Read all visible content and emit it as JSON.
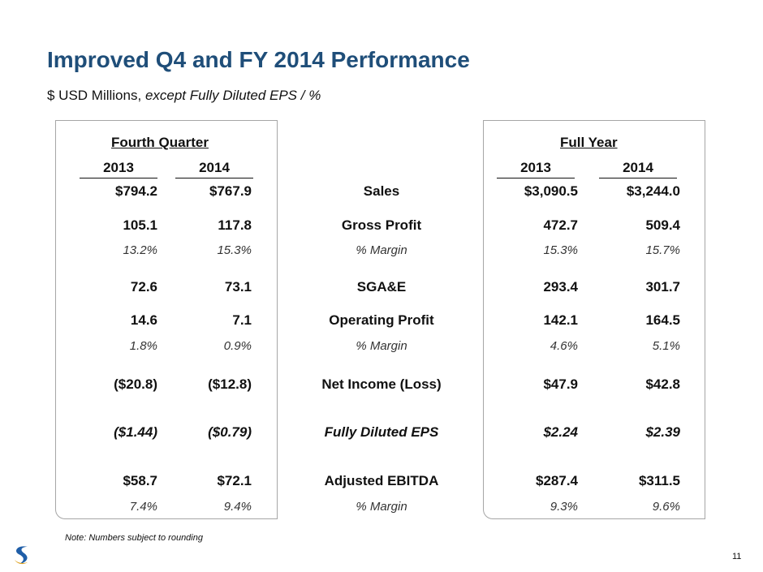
{
  "title": "Improved Q4 and FY 2014 Performance",
  "subtitle": {
    "prefix": "$ USD Millions,",
    "italic": "except Fully Diluted EPS / %"
  },
  "fourth_quarter": {
    "heading": "Fourth Quarter",
    "years": [
      "2013",
      "2014"
    ]
  },
  "full_year": {
    "heading": "Full Year",
    "years": [
      "2013",
      "2014"
    ]
  },
  "rows": [
    {
      "label": "Sales",
      "style": "bold",
      "q2013": "$794.2",
      "q2014": "$767.9",
      "fy2013": "$3,090.5",
      "fy2014": "$3,244.0"
    },
    {
      "label": "Gross Profit",
      "style": "bold",
      "q2013": "105.1",
      "q2014": "117.8",
      "fy2013": "472.7",
      "fy2014": "509.4"
    },
    {
      "label": "% Margin",
      "style": "italic",
      "q2013": "13.2%",
      "q2014": "15.3%",
      "fy2013": "15.3%",
      "fy2014": "15.7%"
    },
    {
      "label": "SGA&E",
      "style": "bold",
      "q2013": "72.6",
      "q2014": "73.1",
      "fy2013": "293.4",
      "fy2014": "301.7"
    },
    {
      "label": "Operating Profit",
      "style": "bold",
      "q2013": "14.6",
      "q2014": "7.1",
      "fy2013": "142.1",
      "fy2014": "164.5"
    },
    {
      "label": "% Margin",
      "style": "italic",
      "q2013": "1.8%",
      "q2014": "0.9%",
      "fy2013": "4.6%",
      "fy2014": "5.1%"
    },
    {
      "label": "Net Income (Loss)",
      "style": "bold",
      "q2013": "($20.8)",
      "q2014": "($12.8)",
      "fy2013": "$47.9",
      "fy2014": "$42.8"
    },
    {
      "label": "Fully Diluted EPS",
      "style": "bold-italic",
      "q2013": "($1.44)",
      "q2014": "($0.79)",
      "fy2013": "$2.24",
      "fy2014": "$2.39"
    },
    {
      "label": "Adjusted EBITDA",
      "style": "bold",
      "q2013": "$58.7",
      "q2014": "$72.1",
      "fy2013": "$287.4",
      "fy2014": "$311.5"
    },
    {
      "label": "% Margin",
      "style": "italic",
      "q2013": "7.4%",
      "q2014": "9.4%",
      "fy2013": "9.3%",
      "fy2014": "9.6%"
    }
  ],
  "note": "Note: Numbers subject to rounding",
  "page_number": "11",
  "colors": {
    "title": "#1f4e79",
    "logo_blue": "#1f5ea8",
    "logo_gold": "#e0a526"
  },
  "logo_icon": "company-swirl-logo"
}
